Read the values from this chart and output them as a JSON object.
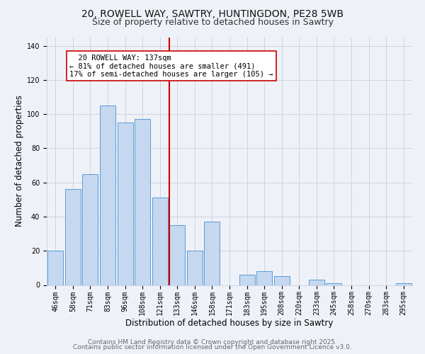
{
  "title_line1": "20, ROWELL WAY, SAWTRY, HUNTINGDON, PE28 5WB",
  "title_line2": "Size of property relative to detached houses in Sawtry",
  "xlabel": "Distribution of detached houses by size in Sawtry",
  "ylabel": "Number of detached properties",
  "categories": [
    "46sqm",
    "58sqm",
    "71sqm",
    "83sqm",
    "96sqm",
    "108sqm",
    "121sqm",
    "133sqm",
    "146sqm",
    "158sqm",
    "171sqm",
    "183sqm",
    "195sqm",
    "208sqm",
    "220sqm",
    "233sqm",
    "245sqm",
    "258sqm",
    "270sqm",
    "283sqm",
    "295sqm"
  ],
  "values": [
    20,
    56,
    65,
    105,
    95,
    97,
    51,
    35,
    20,
    37,
    0,
    6,
    8,
    5,
    0,
    3,
    1,
    0,
    0,
    0,
    1
  ],
  "bar_color": "#c5d8f0",
  "bar_edge_color": "#5b9bd5",
  "vline_color": "#cc0000",
  "annotation_title": "20 ROWELL WAY: 137sqm",
  "annotation_line2": "← 81% of detached houses are smaller (491)",
  "annotation_line3": "17% of semi-detached houses are larger (105) →",
  "annotation_box_edge": "#cc0000",
  "annotation_box_face": "#ffffff",
  "ylim": [
    0,
    145
  ],
  "yticks": [
    0,
    20,
    40,
    60,
    80,
    100,
    120,
    140
  ],
  "footer_line1": "Contains HM Land Registry data © Crown copyright and database right 2025.",
  "footer_line2": "Contains public sector information licensed under the Open Government Licence v3.0.",
  "background_color": "#eef2f8",
  "plot_background": "#eef2f8",
  "grid_color": "#c8d0dc",
  "title_fontsize": 10,
  "subtitle_fontsize": 9,
  "axis_label_fontsize": 8.5,
  "tick_fontsize": 7,
  "footer_fontsize": 6.5,
  "annotation_fontsize": 7.5
}
